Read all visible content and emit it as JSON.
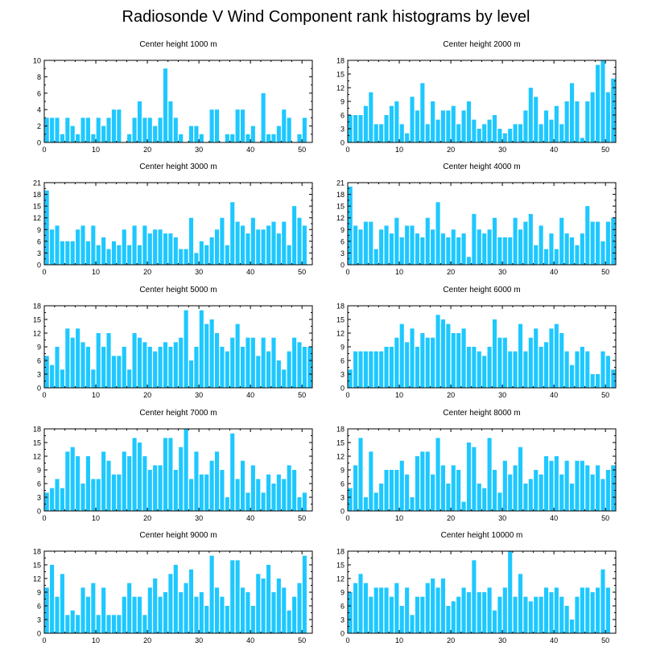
{
  "title": "Radiosonde V Wind Component rank histograms by level",
  "bar_color": "#1EC8FF",
  "chart_data": [
    {
      "type": "bar",
      "title": "Center height 1000 m",
      "categories": [
        0,
        1,
        2,
        3,
        4,
        5,
        6,
        7,
        8,
        9,
        10,
        11,
        12,
        13,
        14,
        15,
        16,
        17,
        18,
        19,
        20,
        21,
        22,
        23,
        24,
        25,
        26,
        27,
        28,
        29,
        30,
        31,
        32,
        33,
        34,
        35,
        36,
        37,
        38,
        39,
        40,
        41,
        42,
        43,
        44,
        45,
        46,
        47,
        48,
        49,
        50,
        51
      ],
      "values": [
        3,
        3,
        3,
        1,
        3,
        2,
        1,
        3,
        3,
        1,
        3,
        2,
        3,
        4,
        4,
        0,
        1,
        3,
        5,
        3,
        3,
        2,
        3,
        9,
        5,
        3,
        1,
        0,
        2,
        2,
        1,
        0,
        4,
        4,
        0,
        1,
        1,
        4,
        4,
        1,
        2,
        0,
        6,
        1,
        1,
        2,
        4,
        3,
        0,
        1,
        3,
        0
      ],
      "xlim": [
        0,
        52
      ],
      "ylim": [
        0,
        10
      ],
      "yticks": [
        0,
        2,
        4,
        6,
        8,
        10
      ],
      "xticks": [
        0,
        10,
        20,
        30,
        40,
        50
      ]
    },
    {
      "type": "bar",
      "title": "Center height 2000 m",
      "categories": [
        0,
        1,
        2,
        3,
        4,
        5,
        6,
        7,
        8,
        9,
        10,
        11,
        12,
        13,
        14,
        15,
        16,
        17,
        18,
        19,
        20,
        21,
        22,
        23,
        24,
        25,
        26,
        27,
        28,
        29,
        30,
        31,
        32,
        33,
        34,
        35,
        36,
        37,
        38,
        39,
        40,
        41,
        42,
        43,
        44,
        45,
        46,
        47,
        48,
        49,
        50,
        51
      ],
      "values": [
        6,
        6,
        6,
        8,
        11,
        4,
        4,
        6,
        8,
        9,
        4,
        2,
        10,
        7,
        13,
        4,
        9,
        5,
        7,
        7,
        8,
        4,
        7,
        9,
        5,
        3,
        4,
        5,
        6,
        3,
        2,
        3,
        4,
        4,
        7,
        12,
        10,
        4,
        7,
        5,
        8,
        4,
        9,
        13,
        9,
        1,
        9,
        11,
        17,
        18,
        11,
        14
      ],
      "xlim": [
        0,
        52
      ],
      "ylim": [
        0,
        18
      ],
      "yticks": [
        0,
        3,
        6,
        9,
        12,
        15,
        18
      ],
      "xticks": [
        0,
        10,
        20,
        30,
        40,
        50
      ]
    },
    {
      "type": "bar",
      "title": "Center height 3000 m",
      "categories": [
        0,
        1,
        2,
        3,
        4,
        5,
        6,
        7,
        8,
        9,
        10,
        11,
        12,
        13,
        14,
        15,
        16,
        17,
        18,
        19,
        20,
        21,
        22,
        23,
        24,
        25,
        26,
        27,
        28,
        29,
        30,
        31,
        32,
        33,
        34,
        35,
        36,
        37,
        38,
        39,
        40,
        41,
        42,
        43,
        44,
        45,
        46,
        47,
        48,
        49,
        50,
        51
      ],
      "values": [
        19,
        9,
        10,
        6,
        6,
        6,
        9,
        10,
        6,
        10,
        5,
        7,
        4,
        6,
        5,
        9,
        5,
        10,
        5,
        10,
        8,
        9,
        9,
        8,
        8,
        7,
        4,
        4,
        12,
        3,
        6,
        5,
        7,
        9,
        12,
        5,
        16,
        11,
        10,
        8,
        12,
        9,
        9,
        10,
        11,
        8,
        11,
        5,
        15,
        12,
        10,
        0
      ],
      "xlim": [
        0,
        52
      ],
      "ylim": [
        0,
        21
      ],
      "yticks": [
        0,
        3,
        6,
        9,
        12,
        15,
        18,
        21
      ],
      "xticks": [
        0,
        10,
        20,
        30,
        40,
        50
      ]
    },
    {
      "type": "bar",
      "title": "Center height 4000 m",
      "categories": [
        0,
        1,
        2,
        3,
        4,
        5,
        6,
        7,
        8,
        9,
        10,
        11,
        12,
        13,
        14,
        15,
        16,
        17,
        18,
        19,
        20,
        21,
        22,
        23,
        24,
        25,
        26,
        27,
        28,
        29,
        30,
        31,
        32,
        33,
        34,
        35,
        36,
        37,
        38,
        39,
        40,
        41,
        42,
        43,
        44,
        45,
        46,
        47,
        48,
        49,
        50,
        51
      ],
      "values": [
        20,
        10,
        9,
        11,
        11,
        4,
        9,
        10,
        8,
        12,
        7,
        10,
        10,
        8,
        7,
        12,
        9,
        16,
        8,
        7,
        9,
        7,
        8,
        2,
        13,
        9,
        8,
        9,
        12,
        7,
        7,
        7,
        12,
        9,
        11,
        13,
        5,
        10,
        4,
        8,
        4,
        12,
        8,
        7,
        5,
        8,
        15,
        11,
        11,
        6,
        11,
        12
      ],
      "xlim": [
        0,
        52
      ],
      "ylim": [
        0,
        21
      ],
      "yticks": [
        0,
        3,
        6,
        9,
        12,
        15,
        18,
        21
      ],
      "xticks": [
        0,
        10,
        20,
        30,
        40,
        50
      ]
    },
    {
      "type": "bar",
      "title": "Center height 5000 m",
      "categories": [
        0,
        1,
        2,
        3,
        4,
        5,
        6,
        7,
        8,
        9,
        10,
        11,
        12,
        13,
        14,
        15,
        16,
        17,
        18,
        19,
        20,
        21,
        22,
        23,
        24,
        25,
        26,
        27,
        28,
        29,
        30,
        31,
        32,
        33,
        34,
        35,
        36,
        37,
        38,
        39,
        40,
        41,
        42,
        43,
        44,
        45,
        46,
        47,
        48,
        49,
        50,
        51
      ],
      "values": [
        7,
        5,
        9,
        4,
        13,
        11,
        13,
        10,
        9,
        4,
        12,
        9,
        12,
        7,
        7,
        9,
        4,
        12,
        11,
        10,
        9,
        8,
        9,
        10,
        9,
        10,
        11,
        17,
        6,
        9,
        17,
        14,
        15,
        12,
        9,
        8,
        11,
        14,
        9,
        11,
        11,
        7,
        11,
        8,
        11,
        6,
        4,
        8,
        11,
        10,
        9,
        9
      ],
      "xlim": [
        0,
        52
      ],
      "ylim": [
        0,
        18
      ],
      "yticks": [
        0,
        3,
        6,
        9,
        12,
        15,
        18
      ],
      "xticks": [
        0,
        10,
        20,
        30,
        40,
        50
      ]
    },
    {
      "type": "bar",
      "title": "Center height 6000 m",
      "categories": [
        0,
        1,
        2,
        3,
        4,
        5,
        6,
        7,
        8,
        9,
        10,
        11,
        12,
        13,
        14,
        15,
        16,
        17,
        18,
        19,
        20,
        21,
        22,
        23,
        24,
        25,
        26,
        27,
        28,
        29,
        30,
        31,
        32,
        33,
        34,
        35,
        36,
        37,
        38,
        39,
        40,
        41,
        42,
        43,
        44,
        45,
        46,
        47,
        48,
        49,
        50,
        51
      ],
      "values": [
        4,
        8,
        8,
        8,
        8,
        8,
        8,
        9,
        9,
        11,
        14,
        10,
        13,
        9,
        12,
        11,
        11,
        16,
        15,
        14,
        12,
        12,
        13,
        9,
        9,
        8,
        7,
        9,
        15,
        11,
        11,
        8,
        8,
        14,
        8,
        11,
        13,
        9,
        10,
        13,
        14,
        12,
        8,
        5,
        8,
        9,
        8,
        3,
        3,
        8,
        7,
        4
      ],
      "xlim": [
        0,
        52
      ],
      "ylim": [
        0,
        18
      ],
      "yticks": [
        0,
        3,
        6,
        9,
        12,
        15,
        18
      ],
      "xticks": [
        0,
        10,
        20,
        30,
        40,
        50
      ]
    },
    {
      "type": "bar",
      "title": "Center height 7000 m",
      "categories": [
        0,
        1,
        2,
        3,
        4,
        5,
        6,
        7,
        8,
        9,
        10,
        11,
        12,
        13,
        14,
        15,
        16,
        17,
        18,
        19,
        20,
        21,
        22,
        23,
        24,
        25,
        26,
        27,
        28,
        29,
        30,
        31,
        32,
        33,
        34,
        35,
        36,
        37,
        38,
        39,
        40,
        41,
        42,
        43,
        44,
        45,
        46,
        47,
        48,
        49,
        50,
        51
      ],
      "values": [
        4,
        5,
        7,
        5,
        13,
        14,
        12,
        6,
        12,
        7,
        7,
        13,
        11,
        8,
        8,
        13,
        12,
        16,
        15,
        12,
        9,
        10,
        10,
        16,
        16,
        9,
        14,
        18,
        7,
        13,
        8,
        8,
        11,
        13,
        9,
        3,
        17,
        7,
        11,
        4,
        10,
        7,
        4,
        8,
        6,
        8,
        7,
        10,
        9,
        3,
        4,
        0
      ],
      "xlim": [
        0,
        52
      ],
      "ylim": [
        0,
        18
      ],
      "yticks": [
        0,
        3,
        6,
        9,
        12,
        15,
        18
      ],
      "xticks": [
        0,
        10,
        20,
        30,
        40,
        50
      ]
    },
    {
      "type": "bar",
      "title": "Center height 8000 m",
      "categories": [
        0,
        1,
        2,
        3,
        4,
        5,
        6,
        7,
        8,
        9,
        10,
        11,
        12,
        13,
        14,
        15,
        16,
        17,
        18,
        19,
        20,
        21,
        22,
        23,
        24,
        25,
        26,
        27,
        28,
        29,
        30,
        31,
        32,
        33,
        34,
        35,
        36,
        37,
        38,
        39,
        40,
        41,
        42,
        43,
        44,
        45,
        46,
        47,
        48,
        49,
        50,
        51
      ],
      "values": [
        5,
        10,
        16,
        3,
        13,
        4,
        6,
        9,
        9,
        9,
        11,
        8,
        3,
        12,
        13,
        13,
        8,
        16,
        10,
        6,
        10,
        9,
        2,
        15,
        14,
        6,
        5,
        16,
        9,
        4,
        11,
        8,
        10,
        14,
        6,
        7,
        9,
        8,
        12,
        11,
        12,
        8,
        11,
        6,
        11,
        11,
        10,
        8,
        10,
        7,
        9,
        10
      ],
      "xlim": [
        0,
        52
      ],
      "ylim": [
        0,
        18
      ],
      "yticks": [
        0,
        3,
        6,
        9,
        12,
        15,
        18
      ],
      "xticks": [
        0,
        10,
        20,
        30,
        40,
        50
      ]
    },
    {
      "type": "bar",
      "title": "Center height 9000 m",
      "categories": [
        0,
        1,
        2,
        3,
        4,
        5,
        6,
        7,
        8,
        9,
        10,
        11,
        12,
        13,
        14,
        15,
        16,
        17,
        18,
        19,
        20,
        21,
        22,
        23,
        24,
        25,
        26,
        27,
        28,
        29,
        30,
        31,
        32,
        33,
        34,
        35,
        36,
        37,
        38,
        39,
        40,
        41,
        42,
        43,
        44,
        45,
        46,
        47,
        48,
        49,
        50,
        51
      ],
      "values": [
        10,
        15,
        8,
        13,
        4,
        5,
        4,
        10,
        8,
        11,
        4,
        10,
        4,
        4,
        4,
        8,
        11,
        8,
        8,
        4,
        10,
        12,
        8,
        9,
        13,
        15,
        9,
        11,
        14,
        8,
        9,
        6,
        17,
        10,
        8,
        6,
        16,
        16,
        10,
        9,
        6,
        13,
        12,
        15,
        9,
        12,
        10,
        5,
        8,
        11,
        17,
        0
      ],
      "xlim": [
        0,
        52
      ],
      "ylim": [
        0,
        18
      ],
      "yticks": [
        0,
        3,
        6,
        9,
        12,
        15,
        18
      ],
      "xticks": [
        0,
        10,
        20,
        30,
        40,
        50
      ]
    },
    {
      "type": "bar",
      "title": "Center height 10000 m",
      "categories": [
        0,
        1,
        2,
        3,
        4,
        5,
        6,
        7,
        8,
        9,
        10,
        11,
        12,
        13,
        14,
        15,
        16,
        17,
        18,
        19,
        20,
        21,
        22,
        23,
        24,
        25,
        26,
        27,
        28,
        29,
        30,
        31,
        32,
        33,
        34,
        35,
        36,
        37,
        38,
        39,
        40,
        41,
        42,
        43,
        44,
        45,
        46,
        47,
        48,
        49,
        50,
        51
      ],
      "values": [
        9,
        11,
        13,
        11,
        8,
        10,
        10,
        10,
        8,
        11,
        6,
        10,
        4,
        8,
        8,
        11,
        12,
        10,
        12,
        6,
        7,
        8,
        10,
        9,
        16,
        9,
        9,
        10,
        5,
        8,
        10,
        18,
        8,
        13,
        8,
        7,
        8,
        8,
        10,
        9,
        10,
        8,
        6,
        3,
        8,
        10,
        10,
        9,
        10,
        14,
        10,
        0
      ],
      "xlim": [
        0,
        52
      ],
      "ylim": [
        0,
        18
      ],
      "yticks": [
        0,
        3,
        6,
        9,
        12,
        15,
        18
      ],
      "xticks": [
        0,
        10,
        20,
        30,
        40,
        50
      ]
    }
  ]
}
